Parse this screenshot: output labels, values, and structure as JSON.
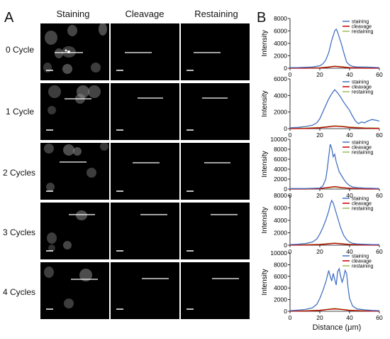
{
  "panel_a": {
    "label": "A",
    "columns": [
      "Staining",
      "Cleavage",
      "Restaining"
    ],
    "rows": [
      "0 Cycle",
      "1 Cycle",
      "2 Cycles",
      "3 Cycles",
      "4 Cycles"
    ]
  },
  "panel_b": {
    "label": "B",
    "xlabel": "Distance (μm)"
  },
  "chart_data": [
    {
      "type": "line",
      "title": "0 Cycle",
      "ylabel": "Intensity",
      "xlim": [
        0,
        60
      ],
      "ylim": [
        0,
        8000
      ],
      "yticks": [
        0,
        2000,
        4000,
        6000,
        8000
      ],
      "xticks": [
        0,
        20,
        40,
        60
      ],
      "legend": "top-right",
      "series": [
        {
          "name": "staining",
          "color": "#4472C4",
          "x": [
            0,
            5,
            10,
            15,
            20,
            22,
            24,
            26,
            27,
            28,
            29,
            30,
            31,
            32,
            33,
            34,
            35,
            36,
            37,
            38,
            40,
            42,
            45,
            50,
            55,
            60
          ],
          "y": [
            100,
            100,
            150,
            200,
            400,
            700,
            1300,
            2500,
            3500,
            4500,
            5200,
            6000,
            6300,
            5800,
            5000,
            4300,
            3500,
            2600,
            1800,
            1000,
            500,
            300,
            200,
            200,
            150,
            100
          ]
        },
        {
          "name": "cleavage",
          "color": "#C00000",
          "x": [
            0,
            10,
            20,
            25,
            30,
            35,
            40,
            50,
            60
          ],
          "y": [
            0,
            0,
            50,
            150,
            300,
            200,
            80,
            0,
            0
          ]
        },
        {
          "name": "restaining",
          "color": "#9BBB59",
          "x": [
            0,
            10,
            20,
            25,
            30,
            35,
            40,
            50,
            60
          ],
          "y": [
            50,
            50,
            100,
            200,
            350,
            250,
            120,
            50,
            50
          ]
        }
      ]
    },
    {
      "type": "line",
      "title": "1 Cycle",
      "ylabel": "Intensity",
      "xlim": [
        0,
        60
      ],
      "ylim": [
        0,
        6000
      ],
      "yticks": [
        0,
        2000,
        4000,
        6000
      ],
      "xticks": [
        0,
        20,
        40,
        60
      ],
      "legend": "top-right",
      "series": [
        {
          "name": "staining",
          "color": "#4472C4",
          "x": [
            0,
            5,
            10,
            15,
            18,
            20,
            22,
            24,
            26,
            28,
            30,
            32,
            34,
            36,
            38,
            40,
            42,
            44,
            46,
            48,
            50,
            52,
            55,
            58,
            60
          ],
          "y": [
            100,
            150,
            250,
            400,
            700,
            1200,
            2000,
            2800,
            3600,
            4200,
            4700,
            4300,
            3800,
            3200,
            2700,
            2200,
            1500,
            900,
            600,
            800,
            700,
            900,
            1100,
            1000,
            900
          ]
        },
        {
          "name": "cleavage",
          "color": "#C00000",
          "x": [
            0,
            10,
            20,
            25,
            30,
            35,
            40,
            50,
            60
          ],
          "y": [
            0,
            20,
            100,
            200,
            300,
            250,
            150,
            50,
            20
          ]
        },
        {
          "name": "restaining",
          "color": "#9BBB59",
          "x": [
            0,
            10,
            20,
            25,
            30,
            35,
            40,
            50,
            60
          ],
          "y": [
            50,
            80,
            150,
            250,
            350,
            300,
            200,
            100,
            80
          ]
        }
      ]
    },
    {
      "type": "line",
      "title": "2 Cycles",
      "ylabel": "Intensity",
      "xlim": [
        0,
        60
      ],
      "ylim": [
        0,
        10000
      ],
      "yticks": [
        0,
        2000,
        4000,
        6000,
        8000,
        10000
      ],
      "xticks": [
        0,
        20,
        40,
        60
      ],
      "legend": "top-right",
      "series": [
        {
          "name": "staining",
          "color": "#4472C4",
          "x": [
            0,
            10,
            20,
            22,
            24,
            25,
            26,
            27,
            28,
            29,
            30,
            31,
            32,
            33,
            34,
            35,
            36,
            38,
            40,
            42,
            45,
            50,
            55,
            60
          ],
          "y": [
            100,
            100,
            200,
            600,
            2000,
            4000,
            6500,
            9000,
            8200,
            6500,
            7000,
            5500,
            4500,
            3500,
            3000,
            2500,
            2000,
            1200,
            700,
            400,
            300,
            200,
            150,
            100
          ]
        },
        {
          "name": "cleavage",
          "color": "#C00000",
          "x": [
            0,
            10,
            20,
            25,
            30,
            35,
            40,
            50,
            60
          ],
          "y": [
            0,
            0,
            100,
            300,
            500,
            300,
            150,
            0,
            0
          ]
        },
        {
          "name": "restaining",
          "color": "#9BBB59",
          "x": [
            0,
            10,
            20,
            25,
            30,
            35,
            40,
            50,
            60
          ],
          "y": [
            50,
            50,
            150,
            250,
            400,
            250,
            150,
            50,
            50
          ]
        }
      ]
    },
    {
      "type": "line",
      "title": "3 Cycles",
      "ylabel": "Intensity",
      "xlim": [
        0,
        60
      ],
      "ylim": [
        0,
        8000
      ],
      "yticks": [
        0,
        2000,
        4000,
        6000,
        8000
      ],
      "xticks": [
        0,
        20,
        40,
        60
      ],
      "legend": "top-right",
      "series": [
        {
          "name": "staining",
          "color": "#4472C4",
          "x": [
            0,
            5,
            10,
            15,
            18,
            20,
            22,
            24,
            26,
            27,
            28,
            29,
            30,
            31,
            32,
            33,
            34,
            35,
            36,
            38,
            40,
            42,
            45,
            50,
            55,
            60
          ],
          "y": [
            100,
            150,
            250,
            500,
            1000,
            1800,
            2800,
            4000,
            5500,
            6500,
            7200,
            6800,
            6000,
            5200,
            4400,
            3600,
            2800,
            2200,
            1600,
            900,
            500,
            300,
            200,
            150,
            100,
            100
          ]
        },
        {
          "name": "cleavage",
          "color": "#C00000",
          "x": [
            0,
            10,
            20,
            25,
            30,
            35,
            40,
            50,
            60
          ],
          "y": [
            0,
            20,
            100,
            200,
            300,
            200,
            100,
            20,
            0
          ]
        },
        {
          "name": "restaining",
          "color": "#9BBB59",
          "x": [
            0,
            10,
            20,
            25,
            30,
            35,
            40,
            50,
            60
          ],
          "y": [
            50,
            80,
            150,
            250,
            350,
            250,
            150,
            80,
            50
          ]
        }
      ]
    },
    {
      "type": "line",
      "title": "4 Cycles",
      "ylabel": "Intensity",
      "xlabel": "Distance (μm)",
      "xlim": [
        0,
        60
      ],
      "ylim": [
        0,
        10000
      ],
      "yticks": [
        0,
        2000,
        4000,
        6000,
        8000,
        10000
      ],
      "xticks": [
        0,
        20,
        40,
        60
      ],
      "legend": "top-right",
      "series": [
        {
          "name": "staining",
          "color": "#4472C4",
          "x": [
            0,
            5,
            10,
            15,
            18,
            20,
            22,
            24,
            26,
            27,
            28,
            29,
            30,
            31,
            32,
            33,
            34,
            35,
            36,
            37,
            38,
            39,
            40,
            42,
            45,
            50,
            55,
            60
          ],
          "y": [
            100,
            200,
            300,
            600,
            1200,
            2200,
            3500,
            5000,
            7000,
            6000,
            5200,
            6500,
            5500,
            4500,
            6800,
            7300,
            6000,
            5000,
            5800,
            7000,
            6500,
            4000,
            2200,
            900,
            400,
            250,
            150,
            100
          ]
        },
        {
          "name": "cleavage",
          "color": "#C00000",
          "x": [
            0,
            10,
            20,
            25,
            30,
            35,
            40,
            50,
            60
          ],
          "y": [
            0,
            50,
            150,
            300,
            400,
            300,
            150,
            50,
            0
          ]
        },
        {
          "name": "restaining",
          "color": "#9BBB59",
          "x": [
            0,
            10,
            20,
            25,
            30,
            35,
            40,
            50,
            60
          ],
          "y": [
            50,
            100,
            200,
            350,
            500,
            350,
            200,
            100,
            50
          ]
        }
      ]
    }
  ]
}
